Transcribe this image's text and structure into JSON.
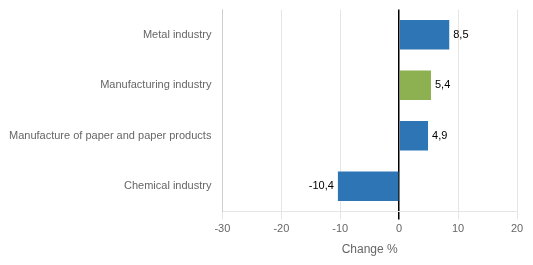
{
  "chart_data": {
    "type": "bar",
    "orientation": "horizontal",
    "categories": [
      "Metal industry",
      "Manufacturing industry",
      "Manufacture of paper and paper products",
      "Chemical industry"
    ],
    "values": [
      8.5,
      5.4,
      4.9,
      -10.4
    ],
    "value_labels": [
      "8,5",
      "5,4",
      "4,9",
      "-10,4"
    ],
    "colors": [
      "#2E75B6",
      "#8DB050",
      "#2E75B6",
      "#2E75B6"
    ],
    "xlabel": "Change %",
    "xlim": [
      -30,
      20
    ],
    "xticks": [
      -30,
      -20,
      -10,
      0,
      10,
      20
    ],
    "grid": true,
    "data_labels": true
  }
}
